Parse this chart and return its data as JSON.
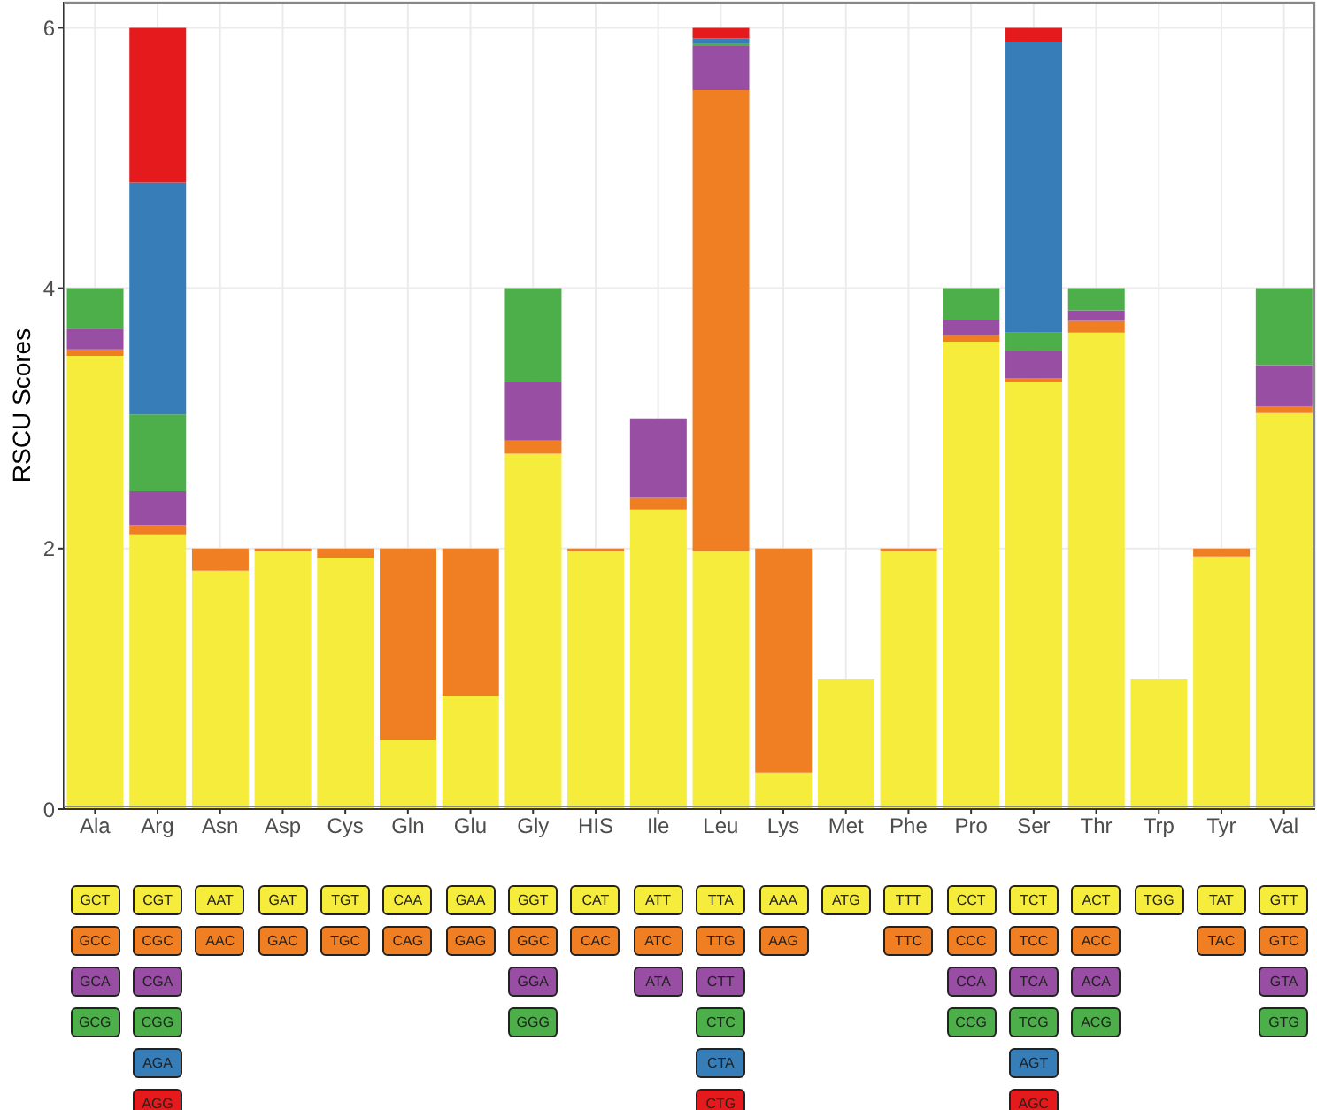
{
  "chart_data": {
    "type": "bar",
    "stacked": true,
    "ylabel": "RSCU Scores",
    "categories": [
      "Ala",
      "Arg",
      "Asn",
      "Asp",
      "Cys",
      "Gln",
      "Glu",
      "Gly",
      "HIS",
      "Ile",
      "Leu",
      "Lys",
      "Met",
      "Phe",
      "Pro",
      "Ser",
      "Thr",
      "Trp",
      "Tyr",
      "Val"
    ],
    "series": [
      {
        "color": "#f5ec3b",
        "values": [
          3.48,
          2.11,
          1.83,
          1.98,
          1.93,
          0.53,
          0.87,
          2.73,
          1.98,
          2.3,
          1.98,
          0.28,
          1,
          1.98,
          3.59,
          3.28,
          3.66,
          1,
          1.94,
          3.04
        ]
      },
      {
        "color": "#ef7f22",
        "values": [
          0.05,
          0.07,
          0.17,
          0.02,
          0.07,
          1.47,
          1.13,
          0.1,
          0.02,
          0.09,
          3.54,
          1.72,
          null,
          0.02,
          0.05,
          0.03,
          0.09,
          null,
          0.06,
          0.05
        ]
      },
      {
        "color": "#984ea3",
        "values": [
          0.16,
          0.26,
          null,
          null,
          null,
          null,
          null,
          0.45,
          null,
          0.61,
          0.34,
          null,
          null,
          null,
          0.12,
          0.21,
          0.08,
          null,
          null,
          0.32
        ]
      },
      {
        "color": "#4daf4a",
        "values": [
          0.31,
          0.59,
          null,
          null,
          null,
          null,
          null,
          0.72,
          null,
          null,
          0.02,
          null,
          null,
          null,
          0.24,
          0.14,
          0.17,
          null,
          null,
          0.59
        ]
      },
      {
        "color": "#377eb8",
        "values": [
          null,
          1.78,
          null,
          null,
          null,
          null,
          null,
          null,
          null,
          null,
          0.04,
          null,
          null,
          null,
          null,
          2.23,
          null,
          null,
          null,
          null
        ]
      },
      {
        "color": "#e41a1c",
        "values": [
          null,
          1.19,
          null,
          null,
          null,
          null,
          null,
          null,
          null,
          null,
          0.08,
          null,
          null,
          null,
          null,
          0.11,
          null,
          null,
          null,
          null
        ]
      }
    ],
    "ylim": [
      0,
      6.2
    ],
    "yticks": [
      0,
      2,
      4,
      6
    ],
    "grid": true,
    "legend": false,
    "annotations": [
      "GCT",
      "GCC",
      "GCA",
      "GCG",
      "CGT",
      "CGC",
      "CGA",
      "CGG",
      "AGA",
      "AGG",
      "AAT",
      "AAC",
      "GAT",
      "GAC",
      "TGT",
      "TGC",
      "CAA",
      "CAG",
      "GAA",
      "GAG",
      "GGT",
      "GGC",
      "GGA",
      "GGG",
      "CAT",
      "CAC",
      "ATT",
      "ATC",
      "ATA",
      "TTA",
      "TTG",
      "CTT",
      "CTC",
      "CTA",
      "CTG",
      "AAA",
      "AAG",
      "ATG",
      "TTT",
      "TTC",
      "CCT",
      "CCC",
      "CCA",
      "CCG",
      "TCT",
      "TCC",
      "TCA",
      "TCG",
      "AGT",
      "AGC",
      "ACT",
      "ACC",
      "ACA",
      "ACG",
      "TGG",
      "TAT",
      "TAC",
      "GTT",
      "GTC",
      "GTA",
      "GTG"
    ]
  }
}
